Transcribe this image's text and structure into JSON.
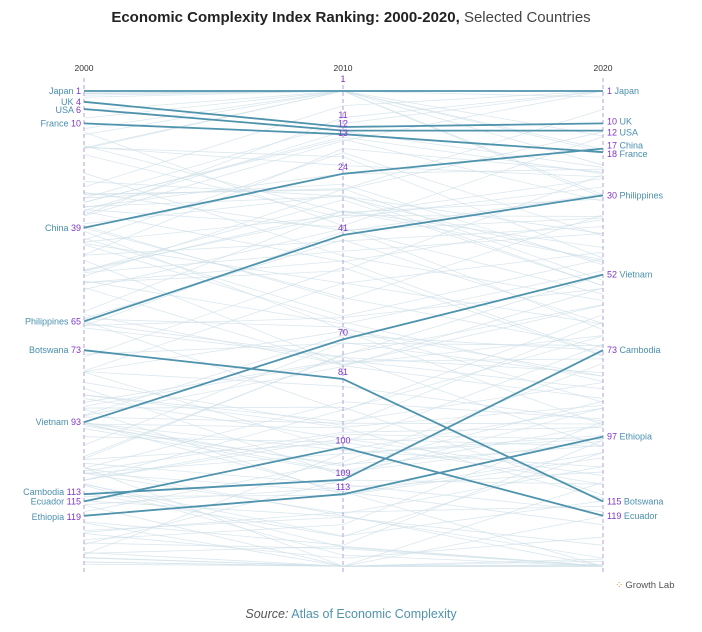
{
  "title": "Economic Complexity Index Ranking: 2000-2020,",
  "subtitle": "Selected Countries",
  "source_label": "Source:",
  "source_text": "Atlas of Economic Complexity",
  "logo_text": "Growth Lab",
  "colors": {
    "highlight": "#4f93ad",
    "background_lines": "#cfe0e8",
    "rank_number": "#7f36c8",
    "axis": "#b0a0d8"
  },
  "chart_data": {
    "type": "line",
    "title": "Economic Complexity Index Ranking: 2000-2020, Selected Countries",
    "x": [
      "2000",
      "2010",
      "2020"
    ],
    "ylim": [
      1,
      133
    ],
    "y_inverted": true,
    "series": [
      {
        "name": "Japan",
        "values": [
          1,
          1,
          1
        ],
        "left_label": "Japan 1",
        "right_label": "1 Japan"
      },
      {
        "name": "UK",
        "values": [
          4,
          11,
          10
        ]
      },
      {
        "name": "USA",
        "values": [
          6,
          12,
          12
        ]
      },
      {
        "name": "France",
        "values": [
          10,
          13,
          18
        ]
      },
      {
        "name": "China",
        "values": [
          39,
          24,
          17
        ]
      },
      {
        "name": "Philippines",
        "values": [
          65,
          41,
          30
        ]
      },
      {
        "name": "Botswana",
        "values": [
          73,
          81,
          115
        ]
      },
      {
        "name": "Vietnam",
        "values": [
          93,
          70,
          52
        ]
      },
      {
        "name": "Cambodia",
        "values": [
          113,
          109,
          73
        ]
      },
      {
        "name": "Ecuador",
        "values": [
          115,
          100,
          119
        ]
      },
      {
        "name": "Ethiopia",
        "values": [
          119,
          113,
          97
        ]
      }
    ]
  }
}
